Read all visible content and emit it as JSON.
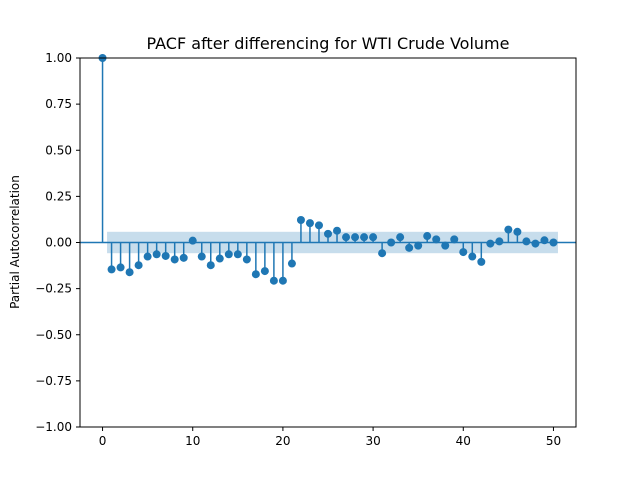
{
  "chart_data": {
    "type": "stem",
    "title": "PACF after differencing for WTI Crude Volume",
    "xlabel": "",
    "ylabel": "Partial Autocorrelation",
    "xlim": [
      -2.5,
      52.5
    ],
    "ylim": [
      -1.0,
      1.0
    ],
    "x_ticks": [
      0,
      10,
      20,
      30,
      40,
      50
    ],
    "y_ticks": [
      -1.0,
      -0.75,
      -0.5,
      -0.25,
      0.0,
      0.25,
      0.5,
      0.75,
      1.0
    ],
    "x_tick_labels": [
      "0",
      "10",
      "20",
      "30",
      "40",
      "50"
    ],
    "y_tick_labels": [
      "−1.00",
      "−0.75",
      "−0.50",
      "−0.25",
      "0.00",
      "0.25",
      "0.50",
      "0.75",
      "1.00"
    ],
    "lags": [
      0,
      1,
      2,
      3,
      4,
      5,
      6,
      7,
      8,
      9,
      10,
      11,
      12,
      13,
      14,
      15,
      16,
      17,
      18,
      19,
      20,
      21,
      22,
      23,
      24,
      25,
      26,
      27,
      28,
      29,
      30,
      31,
      32,
      33,
      34,
      35,
      36,
      37,
      38,
      39,
      40,
      41,
      42,
      43,
      44,
      45,
      46,
      47,
      48,
      49,
      50
    ],
    "values": [
      1.0,
      -0.146,
      -0.135,
      -0.161,
      -0.123,
      -0.076,
      -0.064,
      -0.073,
      -0.092,
      -0.083,
      0.01,
      -0.076,
      -0.123,
      -0.087,
      -0.064,
      -0.064,
      -0.092,
      -0.172,
      -0.155,
      -0.207,
      -0.207,
      -0.114,
      0.122,
      0.105,
      0.093,
      0.047,
      0.064,
      0.029,
      0.029,
      0.029,
      0.029,
      -0.058,
      0.0,
      0.029,
      -0.029,
      -0.017,
      0.035,
      0.017,
      -0.017,
      0.017,
      -0.052,
      -0.076,
      -0.105,
      -0.006,
      0.006,
      0.07,
      0.058,
      0.006,
      -0.006,
      0.012,
      0.0
    ],
    "confidence_band": {
      "lag_start": 0.5,
      "lag_end": 50.5,
      "upper": 0.058,
      "lower": -0.058
    },
    "series_color": "#1f77b4",
    "band_color": "#1f77b4",
    "grid": false,
    "legend": "none"
  }
}
